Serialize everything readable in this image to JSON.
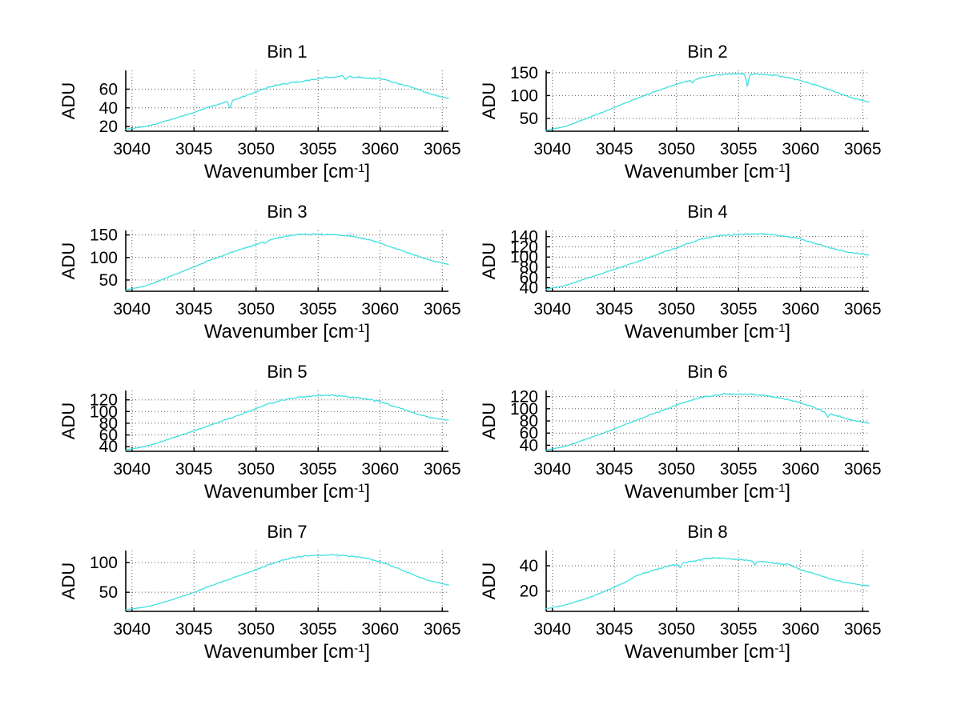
{
  "figure": {
    "background": "#ffffff",
    "accent_line_color": "#3fe0e0",
    "grid_color": "#5a5a5a",
    "text_color": "#000000"
  },
  "chart_data": [
    {
      "type": "line",
      "title": "Bin 1",
      "xlabel": "Wavenumber [cm⁻¹]",
      "ylabel": "ADU",
      "x_range": [
        3039.5,
        3065.5
      ],
      "y_range": [
        15,
        80
      ],
      "x_ticks": [
        3040,
        3045,
        3050,
        3055,
        3060,
        3065
      ],
      "y_ticks": [
        20,
        40,
        60
      ],
      "grid": true,
      "legend": "none",
      "line_color": "#3fe0e0",
      "noise": 0.8,
      "keypoints": [
        [
          3039.5,
          17
        ],
        [
          3041,
          20
        ],
        [
          3042,
          23
        ],
        [
          3043,
          27
        ],
        [
          3044,
          31
        ],
        [
          3045,
          35
        ],
        [
          3046,
          40
        ],
        [
          3047,
          44
        ],
        [
          3048,
          48
        ],
        [
          3049,
          52
        ],
        [
          3050,
          57
        ],
        [
          3051,
          62
        ],
        [
          3052,
          65
        ],
        [
          3053,
          67
        ],
        [
          3054,
          69
        ],
        [
          3055,
          71
        ],
        [
          3056,
          73
        ],
        [
          3057,
          74
        ],
        [
          3058,
          73
        ],
        [
          3059,
          72
        ],
        [
          3060,
          71
        ],
        [
          3061,
          68
        ],
        [
          3062,
          64
        ],
        [
          3063,
          60
        ],
        [
          3064,
          55
        ],
        [
          3065.5,
          50
        ]
      ],
      "spikes": [
        [
          3047.9,
          8
        ],
        [
          3057.2,
          4
        ]
      ]
    },
    {
      "type": "line",
      "title": "Bin 2",
      "xlabel": "Wavenumber [cm⁻¹]",
      "ylabel": "ADU",
      "x_range": [
        3039.5,
        3065.5
      ],
      "y_range": [
        22,
        155
      ],
      "x_ticks": [
        3040,
        3045,
        3050,
        3055,
        3060,
        3065
      ],
      "y_ticks": [
        50,
        100,
        150
      ],
      "grid": true,
      "legend": "none",
      "line_color": "#3fe0e0",
      "noise": 1.3,
      "keypoints": [
        [
          3039.5,
          24
        ],
        [
          3041,
          32
        ],
        [
          3042,
          42
        ],
        [
          3043,
          53
        ],
        [
          3044,
          63
        ],
        [
          3045,
          74
        ],
        [
          3046,
          85
        ],
        [
          3047,
          96
        ],
        [
          3048,
          106
        ],
        [
          3049,
          116
        ],
        [
          3050,
          125
        ],
        [
          3051,
          132
        ],
        [
          3052,
          139
        ],
        [
          3053,
          144
        ],
        [
          3054,
          147
        ],
        [
          3055,
          148
        ],
        [
          3056,
          147
        ],
        [
          3057,
          146
        ],
        [
          3058,
          144
        ],
        [
          3059,
          139
        ],
        [
          3060,
          133
        ],
        [
          3061,
          125
        ],
        [
          3062,
          116
        ],
        [
          3063,
          106
        ],
        [
          3064,
          96
        ],
        [
          3065.5,
          86
        ]
      ],
      "spikes": [
        [
          3055.7,
          26
        ],
        [
          3051.3,
          6
        ]
      ]
    },
    {
      "type": "line",
      "title": "Bin 3",
      "xlabel": "Wavenumber [cm⁻¹]",
      "ylabel": "ADU",
      "x_range": [
        3039.5,
        3065.5
      ],
      "y_range": [
        25,
        160
      ],
      "x_ticks": [
        3040,
        3045,
        3050,
        3055,
        3060,
        3065
      ],
      "y_ticks": [
        50,
        100,
        150
      ],
      "grid": true,
      "legend": "none",
      "line_color": "#3fe0e0",
      "noise": 1.3,
      "keypoints": [
        [
          3039.5,
          28
        ],
        [
          3041,
          36
        ],
        [
          3042,
          46
        ],
        [
          3043,
          57
        ],
        [
          3044,
          68
        ],
        [
          3045,
          79
        ],
        [
          3046,
          91
        ],
        [
          3047,
          101
        ],
        [
          3048,
          111
        ],
        [
          3049,
          120
        ],
        [
          3050,
          129
        ],
        [
          3051,
          138
        ],
        [
          3052,
          145
        ],
        [
          3053,
          150
        ],
        [
          3054,
          152
        ],
        [
          3055,
          151
        ],
        [
          3056,
          151
        ],
        [
          3057,
          149
        ],
        [
          3058,
          146
        ],
        [
          3059,
          140
        ],
        [
          3060,
          132
        ],
        [
          3061,
          122
        ],
        [
          3062,
          113
        ],
        [
          3063,
          103
        ],
        [
          3064,
          94
        ],
        [
          3065.5,
          85
        ]
      ],
      "spikes": [
        [
          3050.8,
          5
        ]
      ]
    },
    {
      "type": "line",
      "title": "Bin 4",
      "xlabel": "Wavenumber [cm⁻¹]",
      "ylabel": "ADU",
      "x_range": [
        3039.5,
        3065.5
      ],
      "y_range": [
        33,
        152
      ],
      "x_ticks": [
        3040,
        3045,
        3050,
        3055,
        3060,
        3065
      ],
      "y_ticks": [
        40,
        60,
        80,
        100,
        120,
        140
      ],
      "grid": true,
      "legend": "none",
      "line_color": "#3fe0e0",
      "noise": 1.2,
      "keypoints": [
        [
          3039.5,
          37
        ],
        [
          3041,
          44
        ],
        [
          3042,
          52
        ],
        [
          3043,
          60
        ],
        [
          3044,
          68
        ],
        [
          3045,
          76
        ],
        [
          3046,
          84
        ],
        [
          3047,
          92
        ],
        [
          3048,
          101
        ],
        [
          3049,
          110
        ],
        [
          3050,
          118
        ],
        [
          3051,
          127
        ],
        [
          3052,
          135
        ],
        [
          3053,
          140
        ],
        [
          3054,
          143
        ],
        [
          3055,
          144
        ],
        [
          3056,
          145
        ],
        [
          3057,
          145
        ],
        [
          3058,
          143
        ],
        [
          3059,
          140
        ],
        [
          3060,
          135
        ],
        [
          3061,
          128
        ],
        [
          3062,
          121
        ],
        [
          3063,
          114
        ],
        [
          3064,
          109
        ],
        [
          3065.5,
          104
        ]
      ],
      "spikes": []
    },
    {
      "type": "line",
      "title": "Bin 5",
      "xlabel": "Wavenumber [cm⁻¹]",
      "ylabel": "ADU",
      "x_range": [
        3039.5,
        3065.5
      ],
      "y_range": [
        32,
        136
      ],
      "x_ticks": [
        3040,
        3045,
        3050,
        3055,
        3060,
        3065
      ],
      "y_ticks": [
        40,
        60,
        80,
        100,
        120
      ],
      "grid": true,
      "legend": "none",
      "line_color": "#3fe0e0",
      "noise": 1.2,
      "keypoints": [
        [
          3039.5,
          34
        ],
        [
          3041,
          40
        ],
        [
          3042,
          46
        ],
        [
          3043,
          53
        ],
        [
          3044,
          60
        ],
        [
          3045,
          67
        ],
        [
          3046,
          74
        ],
        [
          3047,
          82
        ],
        [
          3048,
          89
        ],
        [
          3049,
          97
        ],
        [
          3050,
          105
        ],
        [
          3051,
          113
        ],
        [
          3052,
          119
        ],
        [
          3053,
          123
        ],
        [
          3054,
          126
        ],
        [
          3055,
          127
        ],
        [
          3056,
          128
        ],
        [
          3057,
          126
        ],
        [
          3058,
          124
        ],
        [
          3059,
          121
        ],
        [
          3060,
          117
        ],
        [
          3061,
          110
        ],
        [
          3062,
          103
        ],
        [
          3063,
          96
        ],
        [
          3064,
          90
        ],
        [
          3065.5,
          85
        ]
      ],
      "spikes": []
    },
    {
      "type": "line",
      "title": "Bin 6",
      "xlabel": "Wavenumber [cm⁻¹]",
      "ylabel": "ADU",
      "x_range": [
        3039.5,
        3065.5
      ],
      "y_range": [
        30,
        130
      ],
      "x_ticks": [
        3040,
        3045,
        3050,
        3055,
        3060,
        3065
      ],
      "y_ticks": [
        40,
        60,
        80,
        100,
        120
      ],
      "grid": true,
      "legend": "none",
      "line_color": "#3fe0e0",
      "noise": 1.2,
      "keypoints": [
        [
          3039.5,
          32
        ],
        [
          3041,
          38
        ],
        [
          3042,
          45
        ],
        [
          3043,
          52
        ],
        [
          3044,
          59
        ],
        [
          3045,
          67
        ],
        [
          3046,
          75
        ],
        [
          3047,
          83
        ],
        [
          3048,
          91
        ],
        [
          3049,
          98
        ],
        [
          3050,
          106
        ],
        [
          3051,
          113
        ],
        [
          3052,
          119
        ],
        [
          3053,
          122
        ],
        [
          3054,
          125
        ],
        [
          3055,
          124
        ],
        [
          3056,
          124
        ],
        [
          3057,
          122
        ],
        [
          3058,
          119
        ],
        [
          3059,
          115
        ],
        [
          3060,
          110
        ],
        [
          3061,
          103
        ],
        [
          3062,
          94
        ],
        [
          3063,
          88
        ],
        [
          3064,
          82
        ],
        [
          3065.5,
          76
        ]
      ],
      "spikes": [
        [
          3062.2,
          6
        ]
      ]
    },
    {
      "type": "line",
      "title": "Bin 7",
      "xlabel": "Wavenumber [cm⁻¹]",
      "ylabel": "ADU",
      "x_range": [
        3039.5,
        3065.5
      ],
      "y_range": [
        18,
        120
      ],
      "x_ticks": [
        3040,
        3045,
        3050,
        3055,
        3060,
        3065
      ],
      "y_ticks": [
        50,
        100
      ],
      "grid": true,
      "legend": "none",
      "line_color": "#3fe0e0",
      "noise": 1.0,
      "keypoints": [
        [
          3039.5,
          21
        ],
        [
          3041,
          25
        ],
        [
          3042,
          30
        ],
        [
          3043,
          36
        ],
        [
          3044,
          43
        ],
        [
          3045,
          50
        ],
        [
          3046,
          58
        ],
        [
          3047,
          66
        ],
        [
          3048,
          73
        ],
        [
          3049,
          81
        ],
        [
          3050,
          88
        ],
        [
          3051,
          96
        ],
        [
          3052,
          103
        ],
        [
          3053,
          108
        ],
        [
          3054,
          111
        ],
        [
          3055,
          112
        ],
        [
          3056,
          113
        ],
        [
          3057,
          112
        ],
        [
          3058,
          110
        ],
        [
          3059,
          107
        ],
        [
          3060,
          101
        ],
        [
          3061,
          94
        ],
        [
          3062,
          85
        ],
        [
          3063,
          77
        ],
        [
          3064,
          69
        ],
        [
          3065.5,
          62
        ]
      ],
      "spikes": []
    },
    {
      "type": "line",
      "title": "Bin 8",
      "xlabel": "Wavenumber [cm⁻¹]",
      "ylabel": "ADU",
      "x_range": [
        3039.5,
        3065.5
      ],
      "y_range": [
        4,
        52
      ],
      "x_ticks": [
        3040,
        3045,
        3050,
        3055,
        3060,
        3065
      ],
      "y_ticks": [
        20,
        40
      ],
      "grid": true,
      "legend": "none",
      "line_color": "#3fe0e0",
      "noise": 0.6,
      "keypoints": [
        [
          3039.5,
          6
        ],
        [
          3041,
          9
        ],
        [
          3042,
          12
        ],
        [
          3043,
          15
        ],
        [
          3044,
          19
        ],
        [
          3045,
          23
        ],
        [
          3046,
          28
        ],
        [
          3047,
          33
        ],
        [
          3048,
          36
        ],
        [
          3049,
          39
        ],
        [
          3050,
          41
        ],
        [
          3051,
          43
        ],
        [
          3052,
          45
        ],
        [
          3053,
          46
        ],
        [
          3054,
          46
        ],
        [
          3055,
          45
        ],
        [
          3056,
          44
        ],
        [
          3057,
          43
        ],
        [
          3058,
          42
        ],
        [
          3059,
          41
        ],
        [
          3060,
          37
        ],
        [
          3061,
          34
        ],
        [
          3062,
          31
        ],
        [
          3063,
          28
        ],
        [
          3064,
          26
        ],
        [
          3065.5,
          24
        ]
      ],
      "spikes": [
        [
          3050.3,
          3
        ],
        [
          3056.3,
          3
        ]
      ]
    }
  ]
}
